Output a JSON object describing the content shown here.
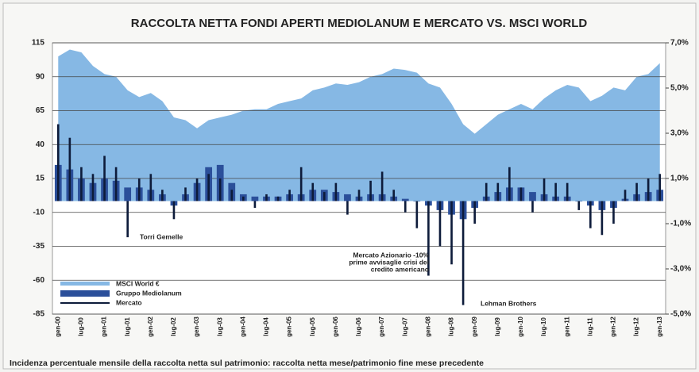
{
  "chart_data": {
    "type": "bar",
    "title": "RACCOLTA NETTA FONDI APERTI MEDIOLANUM E MERCATO VS. MSCI WORLD",
    "footnote": "Incidenza percentuale mensile della raccolta netta sul patrimonio: raccolta netta mese/patrimonio fine mese precedente",
    "categories": [
      "gen-00",
      null,
      "lug-00",
      null,
      "gen-01",
      null,
      "lug-01",
      null,
      "gen-02",
      null,
      "lug-02",
      null,
      "gen-03",
      null,
      "lug-03",
      null,
      "gen-04",
      null,
      "lug-04",
      null,
      "gen-05",
      null,
      "lug-05",
      null,
      "gen-06",
      null,
      "lug-06",
      null,
      "gen-07",
      null,
      "lug-07",
      null,
      "gen-08",
      null,
      "lug-08",
      null,
      "gen-09",
      null,
      "lug-09",
      null,
      "gen-10",
      null,
      "lug-10",
      null,
      "gen-11",
      null,
      "lug-11",
      null,
      "gen-12",
      null,
      "lug-12",
      null,
      "gen-13"
    ],
    "series": [
      {
        "name": "MSCI World €",
        "type": "area",
        "axis": "y",
        "color": "#86b8e4",
        "values": [
          105,
          110,
          108,
          98,
          92,
          90,
          80,
          75,
          78,
          72,
          60,
          58,
          52,
          58,
          60,
          62,
          65,
          66,
          66,
          70,
          72,
          74,
          80,
          82,
          85,
          84,
          86,
          90,
          92,
          96,
          95,
          93,
          85,
          82,
          70,
          55,
          48,
          55,
          62,
          66,
          70,
          66,
          74,
          80,
          84,
          82,
          72,
          76,
          82,
          80,
          90,
          92,
          100
        ]
      },
      {
        "name": "Gruppo Mediolanum",
        "type": "bar",
        "axis": "y2",
        "color": "#2b4f9a",
        "values": [
          1.6,
          1.4,
          1.0,
          0.8,
          1.0,
          0.9,
          0.6,
          0.6,
          0.5,
          0.3,
          -0.2,
          0.3,
          0.8,
          1.5,
          1.6,
          0.8,
          0.3,
          0.2,
          0.2,
          0.2,
          0.3,
          0.3,
          0.5,
          0.5,
          0.4,
          0.3,
          0.2,
          0.3,
          0.3,
          0.2,
          0.1,
          0.0,
          -0.2,
          -0.4,
          -0.6,
          -0.8,
          -0.3,
          0.2,
          0.4,
          0.6,
          0.6,
          0.4,
          0.3,
          0.2,
          0.2,
          0.0,
          -0.2,
          -0.4,
          -0.3,
          0.1,
          0.3,
          0.4,
          0.5
        ]
      },
      {
        "name": "Mercato",
        "type": "bar",
        "axis": "y2",
        "color": "#0d1b3a",
        "values": [
          3.4,
          2.8,
          1.5,
          1.2,
          2.0,
          1.5,
          -1.6,
          1.0,
          1.2,
          0.5,
          -0.8,
          0.6,
          1.0,
          1.2,
          1.0,
          0.5,
          0.2,
          -0.3,
          0.3,
          0.2,
          0.5,
          1.5,
          0.8,
          0.4,
          0.8,
          -0.6,
          0.5,
          0.9,
          1.3,
          0.5,
          -0.5,
          -1.2,
          -3.3,
          -2.0,
          -2.8,
          -4.6,
          -1.0,
          0.8,
          0.8,
          1.5,
          0.6,
          -0.5,
          1.0,
          0.8,
          0.8,
          -0.4,
          -1.2,
          -1.5,
          -1.0,
          0.5,
          0.8,
          1.0,
          1.2
        ]
      }
    ],
    "ylim": [
      -85,
      115
    ],
    "yticks": [
      115,
      90,
      65,
      40,
      15,
      -10,
      -35,
      -60,
      -85
    ],
    "y2lim": [
      -5,
      7
    ],
    "y2ticks": [
      {
        "value": 7,
        "label": "7,0%"
      },
      {
        "value": 5,
        "label": "5,0%"
      },
      {
        "value": 3,
        "label": "3,0%"
      },
      {
        "value": 1,
        "label": "1,0%"
      },
      {
        "value": -1,
        "label": "-1,0%"
      },
      {
        "value": -3,
        "label": "-3,0%"
      },
      {
        "value": -5,
        "label": "-5,0%"
      }
    ],
    "grid": true,
    "annotations": [
      "Torri Gemelle",
      "Mercato Azionario -10%",
      "prime avvisaglie crisi del",
      "credito americano",
      "Lehman Brothers"
    ]
  }
}
